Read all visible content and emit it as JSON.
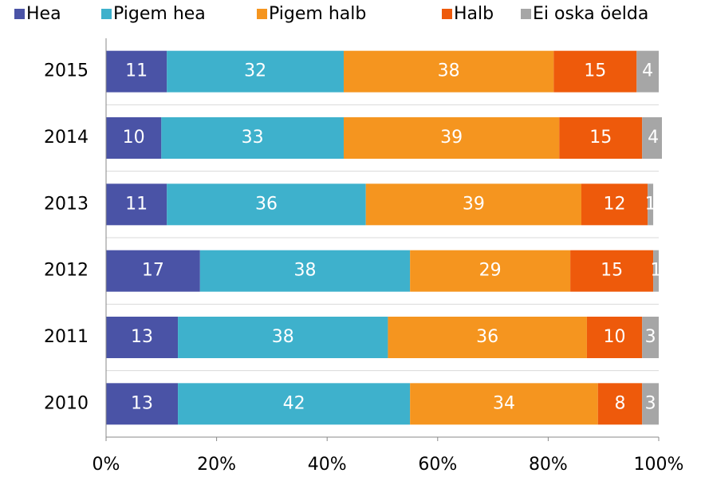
{
  "chart_data": {
    "type": "stacked-barh",
    "categories": [
      "2015",
      "2014",
      "2013",
      "2012",
      "2011",
      "2010"
    ],
    "series": [
      {
        "name": "Hea",
        "color": "#4a53a6",
        "values": [
          11,
          10,
          11,
          17,
          13,
          13
        ]
      },
      {
        "name": "Pigem hea",
        "color": "#3eb1cc",
        "values": [
          32,
          33,
          36,
          38,
          38,
          42
        ]
      },
      {
        "name": "Pigem halb",
        "color": "#f5951f",
        "values": [
          38,
          39,
          39,
          29,
          36,
          34
        ]
      },
      {
        "name": "Halb",
        "color": "#ee5a0b",
        "values": [
          15,
          15,
          12,
          15,
          10,
          8
        ]
      },
      {
        "name": "Ei oska öelda",
        "color": "#a6a6a6",
        "values": [
          4,
          4,
          1,
          1,
          3,
          3
        ]
      }
    ],
    "xlim": [
      0,
      100
    ],
    "xticks": [
      {
        "value": 0,
        "label": "0%"
      },
      {
        "value": 20,
        "label": "20%"
      },
      {
        "value": 40,
        "label": "40%"
      },
      {
        "value": 60,
        "label": "60%"
      },
      {
        "value": 80,
        "label": "80%"
      },
      {
        "value": 100,
        "label": "100%"
      }
    ],
    "legend": "top"
  }
}
